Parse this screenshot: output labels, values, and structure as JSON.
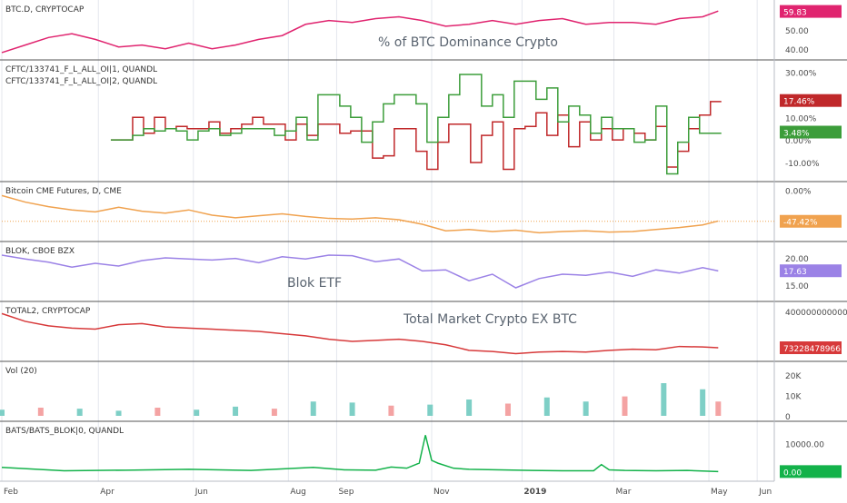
{
  "colors": {
    "btc_d": "#e0246f",
    "cftc1": "#c0282a",
    "cftc2": "#3c9d3a",
    "cme": "#f0a24f",
    "blok": "#9b82e6",
    "total2": "#d7393a",
    "vol_up": "#7ecfc6",
    "vol_down": "#f4a3a3",
    "bats": "#13b24a",
    "grid": "#e4e7ee",
    "separator": "#555555",
    "axis_text": "#4a4a4a"
  },
  "time_axis": {
    "ticks": [
      {
        "label": "Feb",
        "day": 0
      },
      {
        "label": "Apr",
        "day": 62
      },
      {
        "label": "Jun",
        "day": 123
      },
      {
        "label": "Aug",
        "day": 184
      },
      {
        "label": "Sep",
        "day": 215
      },
      {
        "label": "Nov",
        "day": 276
      },
      {
        "label": "2019",
        "day": 334,
        "bold": true
      },
      {
        "label": "Mar",
        "day": 393
      },
      {
        "label": "May",
        "day": 454
      },
      {
        "label": "Jun",
        "day": 485
      }
    ],
    "day_range": [
      0,
      496
    ]
  },
  "chart_data": [
    {
      "type": "line",
      "title": "BTC.D, CRYPTOCAP",
      "annotation": "% of BTC Dominance Crypto",
      "ylim": [
        37,
        63
      ],
      "y_ticks": [
        {
          "label": "50.00",
          "value": 50
        },
        {
          "label": "40.00",
          "value": 40
        }
      ],
      "last_value": "59.83",
      "last_value_num": 59.83,
      "series": [
        {
          "x": [
            0,
            15,
            30,
            45,
            60,
            75,
            90,
            105,
            120,
            135,
            150,
            165,
            180,
            195,
            210,
            225,
            240,
            255,
            270,
            285,
            300,
            315,
            330,
            345,
            360,
            375,
            390,
            405,
            420,
            435,
            450,
            460
          ],
          "y": [
            38,
            42,
            46,
            48,
            45,
            41,
            42,
            40,
            43,
            40,
            42,
            45,
            47,
            53,
            55,
            54,
            56,
            57,
            55,
            52,
            53,
            55,
            53,
            55,
            56,
            53,
            54,
            54,
            53,
            56,
            57,
            60
          ]
        }
      ]
    },
    {
      "type": "line",
      "title": "CFTC/133741_F_L_ALL_OI|1, QUANDL",
      "title2": "CFTC/133741_F_L_ALL_OI|2, QUANDL",
      "ylim": [
        -16,
        33
      ],
      "y_ticks": [
        {
          "label": "30.00%",
          "value": 30
        },
        {
          "label": "10.00%",
          "value": 10
        },
        {
          "label": "0.00%",
          "value": 0
        },
        {
          "label": "-10.00%",
          "value": -10
        }
      ],
      "last_values": [
        {
          "text": "17.46%",
          "value": 17.46
        },
        {
          "text": "3.48%",
          "value": 3.48
        }
      ],
      "series": [
        {
          "step": true,
          "x": [
            70,
            77,
            84,
            91,
            98,
            105,
            112,
            119,
            126,
            133,
            140,
            147,
            154,
            161,
            168,
            175,
            182,
            189,
            196,
            203,
            210,
            217,
            224,
            231,
            238,
            245,
            252,
            259,
            266,
            273,
            280,
            287,
            294,
            301,
            308,
            315,
            322,
            329,
            336,
            343,
            350,
            357,
            364,
            371,
            378,
            385,
            392,
            399,
            406,
            413,
            420,
            427,
            434,
            441,
            448,
            455,
            462
          ],
          "y": [
            0,
            0,
            10,
            3,
            10,
            5,
            6,
            5,
            5,
            8,
            3,
            5,
            7,
            10,
            7,
            7,
            0,
            7,
            2,
            7,
            7,
            3,
            4,
            4,
            -8,
            -7,
            5,
            5,
            -5,
            -13,
            -1,
            7,
            7,
            -10,
            2,
            8,
            -13,
            5,
            6,
            12,
            2,
            11,
            -3,
            8,
            0,
            5,
            0,
            5,
            3,
            0,
            6,
            -12,
            -5,
            5,
            11,
            17,
            17
          ]
        },
        {
          "step": true,
          "x": [
            70,
            77,
            84,
            91,
            98,
            105,
            112,
            119,
            126,
            133,
            140,
            147,
            154,
            161,
            168,
            175,
            182,
            189,
            196,
            203,
            210,
            217,
            224,
            231,
            238,
            245,
            252,
            259,
            266,
            273,
            280,
            287,
            294,
            301,
            308,
            315,
            322,
            329,
            336,
            343,
            350,
            357,
            364,
            371,
            378,
            385,
            392,
            399,
            406,
            413,
            420,
            427,
            434,
            441,
            448,
            455,
            462
          ],
          "y": [
            0,
            0,
            2,
            5,
            4,
            5,
            4,
            0,
            4,
            5,
            2,
            3,
            5,
            5,
            5,
            2,
            4,
            10,
            0,
            20,
            20,
            15,
            10,
            -1,
            8,
            16,
            20,
            20,
            16,
            -1,
            10,
            20,
            29,
            29,
            15,
            20,
            10,
            26,
            26,
            18,
            23,
            8,
            15,
            11,
            3,
            10,
            5,
            5,
            -1,
            0,
            15,
            -15,
            -1,
            10,
            3,
            3,
            3
          ]
        }
      ]
    },
    {
      "type": "line",
      "title": "Bitcoin CME Futures, D, CME",
      "ylim": [
        -70,
        5
      ],
      "y_ticks": [
        {
          "label": "0.00%",
          "value": 0
        }
      ],
      "last_value": "-47.42%",
      "last_value_num": -47.42,
      "series": [
        {
          "x": [
            0,
            15,
            30,
            45,
            60,
            75,
            90,
            105,
            120,
            135,
            150,
            165,
            180,
            195,
            210,
            225,
            240,
            255,
            270,
            285,
            300,
            315,
            330,
            345,
            360,
            375,
            390,
            405,
            420,
            435,
            450,
            460
          ],
          "y": [
            -8,
            -18,
            -25,
            -30,
            -33,
            -26,
            -32,
            -35,
            -30,
            -38,
            -42,
            -39,
            -36,
            -40,
            -43,
            -44,
            -42,
            -45,
            -52,
            -62,
            -60,
            -63,
            -61,
            -65,
            -63,
            -62,
            -64,
            -63,
            -60,
            -57,
            -53,
            -47
          ]
        }
      ]
    },
    {
      "type": "line",
      "title": "BLOK, CBOE BZX",
      "annotation": "Blok ETF",
      "ylim": [
        13,
        22
      ],
      "y_ticks": [
        {
          "label": "20.00",
          "value": 20
        },
        {
          "label": "15.00",
          "value": 15
        }
      ],
      "last_value": "17.63",
      "last_value_num": 17.63,
      "series": [
        {
          "x": [
            0,
            15,
            30,
            45,
            60,
            75,
            90,
            105,
            120,
            135,
            150,
            165,
            180,
            195,
            210,
            225,
            240,
            255,
            270,
            285,
            300,
            315,
            330,
            345,
            360,
            375,
            390,
            405,
            420,
            435,
            450,
            460
          ],
          "y": [
            20.5,
            19.8,
            19.2,
            18.3,
            19.0,
            18.5,
            19.5,
            20.0,
            19.8,
            19.6,
            19.9,
            19.1,
            20.2,
            19.8,
            20.5,
            20.4,
            19.3,
            19.8,
            17.6,
            17.8,
            15.8,
            17.0,
            14.5,
            16.2,
            17.0,
            16.8,
            17.4,
            16.6,
            17.8,
            17.2,
            18.2,
            17.6
          ]
        }
      ]
    },
    {
      "type": "line",
      "title": "TOTAL2, CRYPTOCAP",
      "annotation": "Total Market Crypto EX BTC",
      "ylim": [
        0,
        440000000000
      ],
      "y_ticks": [
        {
          "label": "400000000000.00",
          "value": 400000000000
        }
      ],
      "last_value": "73228478966.81",
      "last_value_num": 73228478966.81,
      "series": [
        {
          "x": [
            0,
            15,
            30,
            45,
            60,
            75,
            90,
            105,
            120,
            135,
            150,
            165,
            180,
            195,
            210,
            225,
            240,
            255,
            270,
            285,
            300,
            315,
            330,
            345,
            360,
            375,
            390,
            405,
            420,
            435,
            450,
            460
          ],
          "y": [
            380,
            310,
            270,
            250,
            240,
            280,
            290,
            260,
            250,
            240,
            230,
            220,
            200,
            180,
            150,
            130,
            140,
            150,
            130,
            100,
            50,
            40,
            20,
            35,
            40,
            35,
            50,
            60,
            55,
            85,
            80,
            73
          ]
        }
      ]
    },
    {
      "type": "bar",
      "title": "Vol (20)",
      "ylim": [
        0,
        24000
      ],
      "y_ticks": [
        {
          "label": "20K",
          "value": 20000
        },
        {
          "label": "10K",
          "value": 10000
        },
        {
          "label": "0",
          "value": 0
        }
      ],
      "series": [
        {
          "x": [
            0,
            25,
            50,
            75,
            100,
            125,
            150,
            175,
            200,
            225,
            250,
            275,
            300,
            325,
            350,
            375,
            400,
            425,
            450,
            460
          ],
          "y": [
            3000,
            4000,
            3500,
            2500,
            4000,
            3000,
            4500,
            3500,
            7000,
            6500,
            5000,
            5500,
            8000,
            6000,
            9000,
            7000,
            9500,
            16000,
            13000,
            7000
          ]
        }
      ]
    },
    {
      "type": "line",
      "title": "BATS/BATS_BLOK|0, QUANDL",
      "ylim": [
        -1500,
        16000
      ],
      "y_ticks": [
        {
          "label": "10000.00",
          "value": 10000
        }
      ],
      "last_value": "0.00",
      "last_value_num": 0,
      "series": [
        {
          "x": [
            0,
            40,
            80,
            120,
            160,
            200,
            220,
            240,
            250,
            260,
            268,
            272,
            276,
            280,
            290,
            300,
            320,
            340,
            360,
            380,
            385,
            390,
            400,
            420,
            440,
            460
          ],
          "y": [
            1500,
            300,
            500,
            800,
            400,
            1500,
            600,
            500,
            1600,
            1200,
            3000,
            13000,
            4000,
            3000,
            1200,
            800,
            600,
            400,
            300,
            300,
            2500,
            600,
            400,
            300,
            400,
            0
          ]
        }
      ]
    }
  ]
}
